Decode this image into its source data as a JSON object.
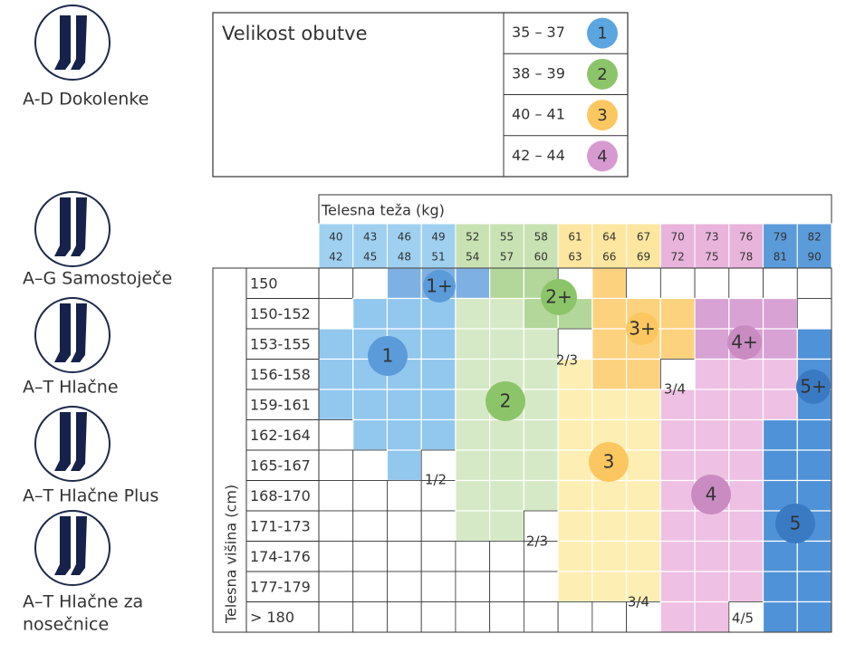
{
  "products": [
    [
      "A-D Dokolenke"
    ],
    [
      "A–G Samostoječe"
    ],
    [
      "A–T Hlačne"
    ],
    [
      "A–T Hlačne Plus"
    ],
    [
      "A–T Hlačne za",
      "nosečnice"
    ]
  ],
  "shoe_size": {
    "title": "Velikost obutve",
    "rows": [
      {
        "range": "35 – 37",
        "size": "1"
      },
      {
        "range": "38 – 39",
        "size": "2"
      },
      {
        "range": "40 – 41",
        "size": "3"
      },
      {
        "range": "42 – 44",
        "size": "4"
      }
    ]
  },
  "table": {
    "weight_title": "Telesna teža  (kg)",
    "height_title": "Telesna višina  (cm)",
    "weights": [
      [
        "40",
        "42"
      ],
      [
        "43",
        "45"
      ],
      [
        "46",
        "48"
      ],
      [
        "49",
        "51"
      ],
      [
        "52",
        "54"
      ],
      [
        "55",
        "57"
      ],
      [
        "58",
        "60"
      ],
      [
        "61",
        "63"
      ],
      [
        "64",
        "66"
      ],
      [
        "67",
        "69"
      ],
      [
        "70",
        "72"
      ],
      [
        "73",
        "75"
      ],
      [
        "76",
        "78"
      ],
      [
        "79",
        "81"
      ],
      [
        "82",
        "90"
      ]
    ],
    "heights": [
      "150",
      "150-152",
      "153-155",
      "156-158",
      "159-161",
      "162-164",
      "165-167",
      "168-170",
      "171-173",
      "174-176",
      "177-179",
      "> 180"
    ],
    "zones": [
      "1+",
      "1",
      "2+",
      "2",
      "3+",
      "3",
      "4+",
      "4",
      "5+",
      "5"
    ],
    "transitions": [
      "2/3",
      "3/4",
      "1/2",
      "2/3",
      "3/4",
      "4/5"
    ]
  }
}
